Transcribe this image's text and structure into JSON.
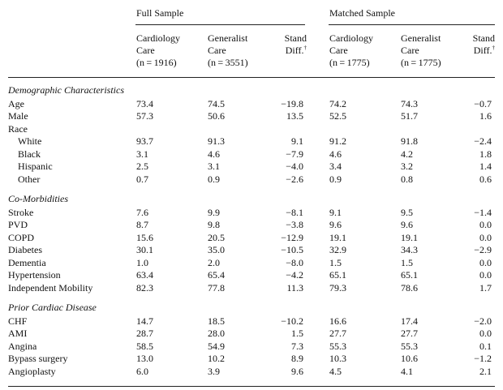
{
  "header": {
    "groups": [
      {
        "label": "Full Sample"
      },
      {
        "label": "Matched Sample"
      }
    ],
    "columns": [
      {
        "lines": [
          "Cardiology",
          "Care",
          "(n = 1916)"
        ],
        "align": "left"
      },
      {
        "lines": [
          "Generalist",
          "Care",
          "(n = 3551)"
        ],
        "align": "left"
      },
      {
        "lines": [
          "Stand",
          "Diff."
        ],
        "dagger": "†",
        "align": "right"
      },
      {
        "lines": [
          "Cardiology",
          "Care",
          "(n = 1775)"
        ],
        "align": "left"
      },
      {
        "lines": [
          "Generalist",
          "Care",
          "(n = 1775)"
        ],
        "align": "left"
      },
      {
        "lines": [
          "Stand",
          "Diff."
        ],
        "dagger": "†",
        "align": "right"
      }
    ]
  },
  "sections": [
    {
      "title": "Demographic Characteristics",
      "rows": [
        {
          "label": "Age",
          "indent": false,
          "values": [
            "73.4",
            "74.5",
            "−19.8",
            "74.2",
            "74.3",
            "−0.7"
          ]
        },
        {
          "label": "Male",
          "indent": false,
          "values": [
            "57.3",
            "50.6",
            "13.5",
            "52.5",
            "51.7",
            "1.6"
          ]
        },
        {
          "label": "Race",
          "indent": false,
          "values": [
            "",
            "",
            "",
            "",
            "",
            ""
          ]
        },
        {
          "label": "White",
          "indent": true,
          "values": [
            "93.7",
            "91.3",
            "9.1",
            "91.2",
            "91.8",
            "−2.4"
          ]
        },
        {
          "label": "Black",
          "indent": true,
          "values": [
            "3.1",
            "4.6",
            "−7.9",
            "4.6",
            "4.2",
            "1.8"
          ]
        },
        {
          "label": "Hispanic",
          "indent": true,
          "values": [
            "2.5",
            "3.1",
            "−4.0",
            "3.4",
            "3.2",
            "1.4"
          ]
        },
        {
          "label": "Other",
          "indent": true,
          "values": [
            "0.7",
            "0.9",
            "−2.6",
            "0.9",
            "0.8",
            "0.6"
          ]
        }
      ]
    },
    {
      "title": "Co-Morbidities",
      "rows": [
        {
          "label": "Stroke",
          "indent": false,
          "values": [
            "7.6",
            "9.9",
            "−8.1",
            "9.1",
            "9.5",
            "−1.4"
          ]
        },
        {
          "label": "PVD",
          "indent": false,
          "values": [
            "8.7",
            "9.8",
            "−3.8",
            "9.6",
            "9.6",
            "0.0"
          ]
        },
        {
          "label": "COPD",
          "indent": false,
          "values": [
            "15.6",
            "20.5",
            "−12.9",
            "19.1",
            "19.1",
            "0.0"
          ]
        },
        {
          "label": "Diabetes",
          "indent": false,
          "values": [
            "30.1",
            "35.0",
            "−10.5",
            "32.9",
            "34.3",
            "−2.9"
          ]
        },
        {
          "label": "Dementia",
          "indent": false,
          "values": [
            "1.0",
            "2.0",
            "−8.0",
            "1.5",
            "1.5",
            "0.0"
          ]
        },
        {
          "label": "Hypertension",
          "indent": false,
          "values": [
            "63.4",
            "65.4",
            "−4.2",
            "65.1",
            "65.1",
            "0.0"
          ]
        },
        {
          "label": "Independent Mobility",
          "indent": false,
          "values": [
            "82.3",
            "77.8",
            "11.3",
            "79.3",
            "78.6",
            "1.7"
          ]
        }
      ]
    },
    {
      "title": "Prior Cardiac Disease",
      "rows": [
        {
          "label": "CHF",
          "indent": false,
          "values": [
            "14.7",
            "18.5",
            "−10.2",
            "16.6",
            "17.4",
            "−2.0"
          ]
        },
        {
          "label": "AMI",
          "indent": false,
          "values": [
            "28.7",
            "28.0",
            "1.5",
            "27.7",
            "27.7",
            "0.0"
          ]
        },
        {
          "label": "Angina",
          "indent": false,
          "values": [
            "58.5",
            "54.9",
            "7.3",
            "55.3",
            "55.3",
            "0.1"
          ]
        },
        {
          "label": "Bypass surgery",
          "indent": false,
          "values": [
            "13.0",
            "10.2",
            "8.9",
            "10.3",
            "10.6",
            "−1.2"
          ]
        },
        {
          "label": "Angioplasty",
          "indent": false,
          "values": [
            "6.0",
            "3.9",
            "9.6",
            "4.5",
            "4.1",
            "2.1"
          ]
        }
      ]
    }
  ]
}
